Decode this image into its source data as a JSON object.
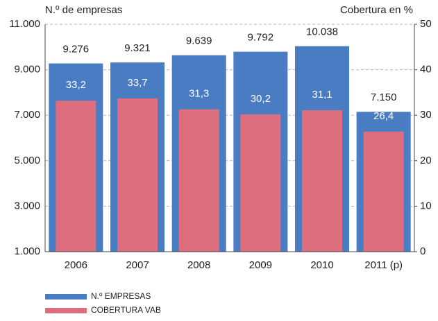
{
  "chart_data": {
    "type": "bar",
    "y_label": "N.º de empresas",
    "y2_label": "Cobertura en %",
    "categories": [
      "2006",
      "2007",
      "2008",
      "2009",
      "2010",
      "2011 (p)"
    ],
    "series": [
      {
        "name": "N.º EMPRESAS",
        "color": "#4a7cc4",
        "values": [
          9276,
          9321,
          9639,
          9792,
          10038,
          7150
        ],
        "value_labels": [
          "9.276",
          "9.321",
          "9.639",
          "9.792",
          "10.038",
          "7.150"
        ]
      },
      {
        "name": "COBERTURA VAB",
        "color": "#dc6e7d",
        "axis": "y2",
        "values": [
          33.2,
          33.7,
          31.3,
          30.2,
          31.1,
          26.4
        ],
        "value_labels": [
          "33,2",
          "33,7",
          "31,3",
          "30,2",
          "31,1",
          "26,4"
        ]
      }
    ],
    "ylim": [
      1000,
      11000
    ],
    "yticks": [
      {
        "value": 1000,
        "label": "1.000"
      },
      {
        "value": 3000,
        "label": "3.000"
      },
      {
        "value": 5000,
        "label": "5.000"
      },
      {
        "value": 7000,
        "label": "7.000"
      },
      {
        "value": 9000,
        "label": "9.000"
      },
      {
        "value": 11000,
        "label": "11.000"
      }
    ],
    "y2lim": [
      0,
      50
    ],
    "y2ticks": [
      0,
      10,
      20,
      30,
      40,
      50
    ],
    "grid": true
  }
}
